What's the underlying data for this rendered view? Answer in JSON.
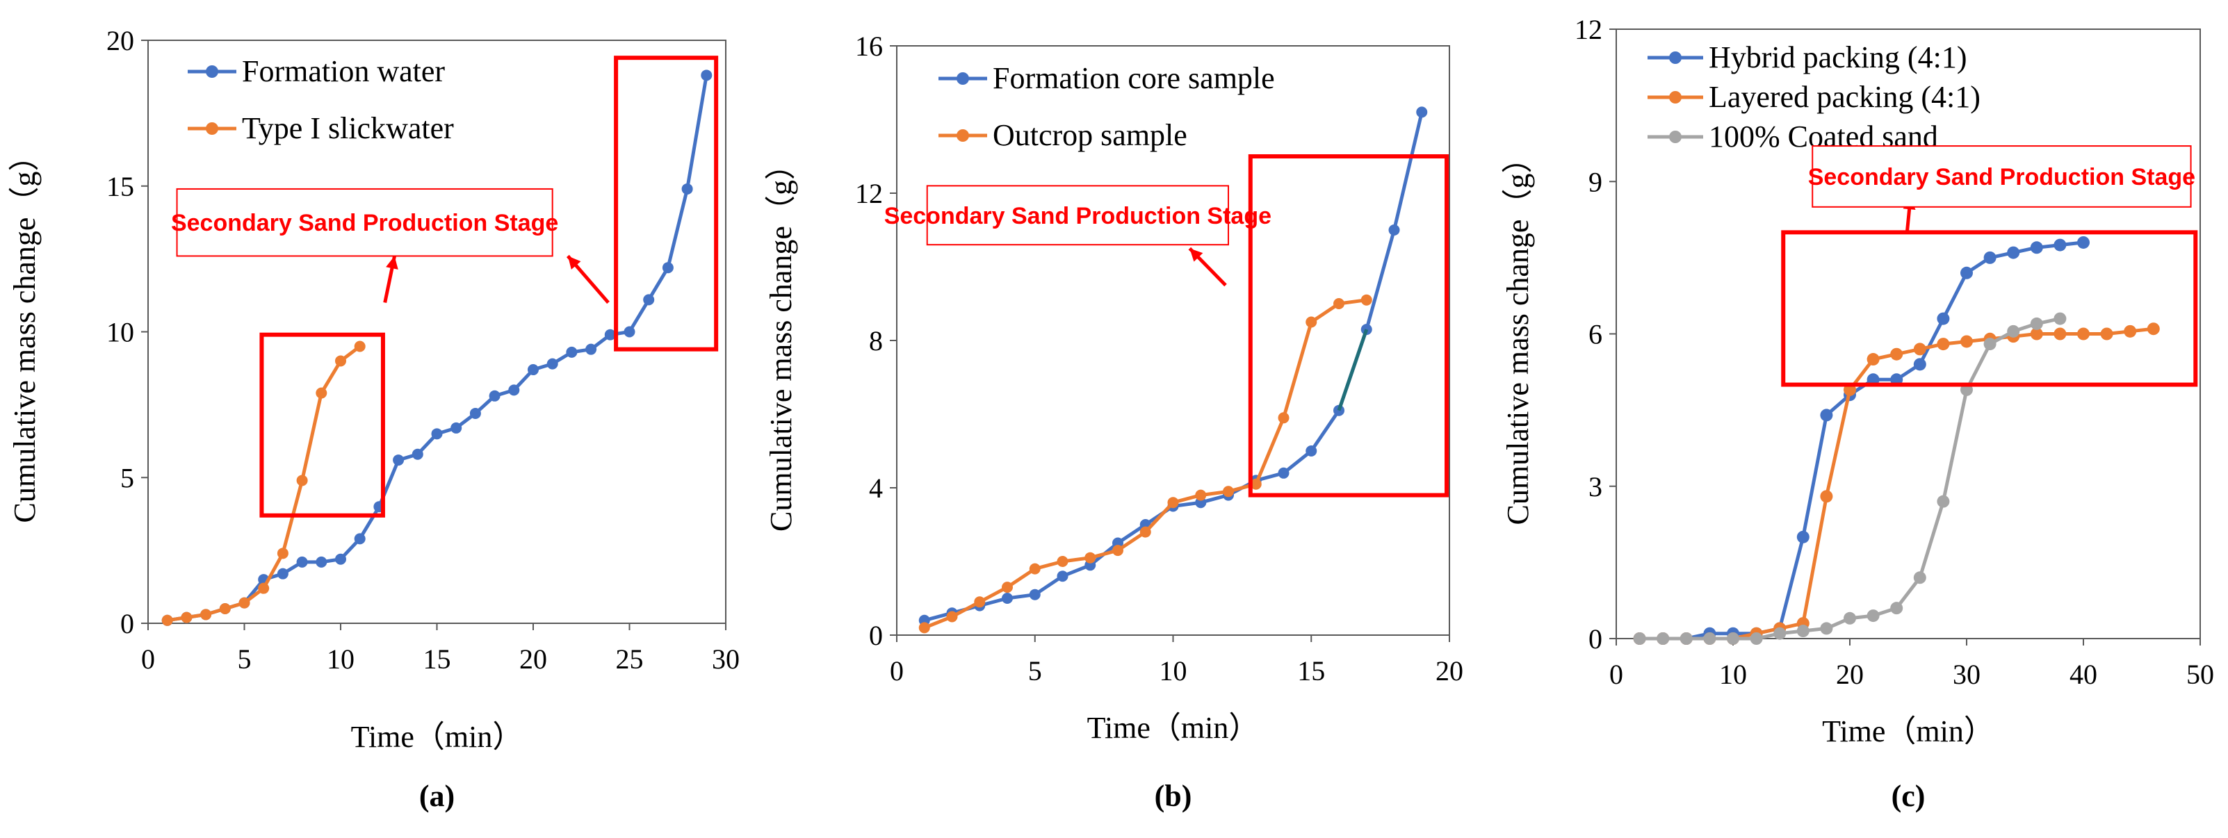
{
  "colors": {
    "blue": "#4472c4",
    "orange": "#ed7d31",
    "gray": "#a5a5a5",
    "red": "#ff0000",
    "teal": "#1f6e78",
    "axis": "#595959"
  },
  "annotation_text": "Secondary Sand Production Stage",
  "chart_data": [
    {
      "id": "a",
      "panel_label": "(a)",
      "type": "line",
      "xlabel": "Time（min）",
      "ylabel": "Cumulative mass change（g）",
      "xlim": [
        0,
        30
      ],
      "ylim": [
        0,
        20
      ],
      "xticks": [
        0,
        5,
        10,
        15,
        20,
        25,
        30
      ],
      "yticks": [
        0,
        5,
        10,
        15,
        20
      ],
      "legend_position": "top-left",
      "series": [
        {
          "name": "Formation water",
          "color": "#4472c4",
          "points": [
            [
              1,
              0.1
            ],
            [
              2,
              0.2
            ],
            [
              3,
              0.3
            ],
            [
              4,
              0.5
            ],
            [
              5,
              0.7
            ],
            [
              6,
              1.5
            ],
            [
              7,
              1.7
            ],
            [
              8,
              2.1
            ],
            [
              9,
              2.1
            ],
            [
              10,
              2.2
            ],
            [
              11,
              2.9
            ],
            [
              12,
              4.0
            ],
            [
              13,
              5.6
            ],
            [
              14,
              5.8
            ],
            [
              15,
              6.5
            ],
            [
              16,
              6.7
            ],
            [
              17,
              7.2
            ],
            [
              18,
              7.8
            ],
            [
              19,
              8.0
            ],
            [
              20,
              8.7
            ],
            [
              21,
              8.9
            ],
            [
              22,
              9.3
            ],
            [
              23,
              9.4
            ],
            [
              24,
              9.9
            ],
            [
              25,
              10.0
            ],
            [
              26,
              11.1
            ],
            [
              27,
              12.2
            ],
            [
              28,
              14.9
            ],
            [
              29,
              18.8
            ]
          ]
        },
        {
          "name": "Type I slickwater",
          "color": "#ed7d31",
          "points": [
            [
              1,
              0.1
            ],
            [
              2,
              0.2
            ],
            [
              3,
              0.3
            ],
            [
              4,
              0.5
            ],
            [
              5,
              0.7
            ],
            [
              6,
              1.2
            ],
            [
              7,
              2.4
            ],
            [
              8,
              4.9
            ],
            [
              9,
              7.9
            ],
            [
              10,
              9.0
            ],
            [
              11,
              9.5
            ]
          ]
        }
      ],
      "boxes": [
        {
          "x0": 5.9,
          "x1": 12.2,
          "y0": 3.7,
          "y1": 9.9
        },
        {
          "x0": 24.3,
          "x1": 29.5,
          "y0": 9.4,
          "y1": 19.4
        }
      ],
      "arrows": [
        {
          "from": [
            12.3,
            11.0
          ],
          "to": [
            12.8,
            12.6
          ]
        },
        {
          "from": [
            23.9,
            11.0
          ],
          "to": [
            21.8,
            12.6
          ]
        }
      ],
      "annotations": [
        {
          "text": "Secondary Sand Production Stage",
          "x": 1.5,
          "y": 14.9,
          "x1": 21.0,
          "y1": 12.6
        }
      ]
    },
    {
      "id": "b",
      "panel_label": "(b)",
      "type": "line",
      "xlabel": "Time（min）",
      "ylabel": "Cumulative mass change（g）",
      "xlim": [
        0,
        20
      ],
      "ylim": [
        0,
        16
      ],
      "xticks": [
        0,
        5,
        10,
        15,
        20
      ],
      "yticks": [
        0,
        4,
        8,
        12,
        16
      ],
      "legend_position": "top-left",
      "series": [
        {
          "name": "Formation core sample",
          "color": "#4472c4",
          "points": [
            [
              1,
              0.4
            ],
            [
              2,
              0.6
            ],
            [
              3,
              0.8
            ],
            [
              4,
              1.0
            ],
            [
              5,
              1.1
            ],
            [
              6,
              1.6
            ],
            [
              7,
              1.9
            ],
            [
              8,
              2.5
            ],
            [
              9,
              3.0
            ],
            [
              10,
              3.5
            ],
            [
              11,
              3.6
            ],
            [
              12,
              3.8
            ],
            [
              13,
              4.2
            ],
            [
              14,
              4.4
            ],
            [
              15,
              5.0
            ],
            [
              16,
              6.1
            ],
            [
              17,
              8.3
            ],
            [
              18,
              11.0
            ],
            [
              19,
              14.2
            ]
          ]
        },
        {
          "name": "Outcrop sample",
          "color": "#ed7d31",
          "points": [
            [
              1,
              0.2
            ],
            [
              2,
              0.5
            ],
            [
              3,
              0.9
            ],
            [
              4,
              1.3
            ],
            [
              5,
              1.8
            ],
            [
              6,
              2.0
            ],
            [
              7,
              2.1
            ],
            [
              8,
              2.3
            ],
            [
              9,
              2.8
            ],
            [
              10,
              3.6
            ],
            [
              11,
              3.8
            ],
            [
              12,
              3.9
            ],
            [
              13,
              4.1
            ],
            [
              14,
              5.9
            ],
            [
              15,
              8.5
            ],
            [
              16,
              9.0
            ],
            [
              17,
              9.1
            ]
          ]
        }
      ],
      "boxes": [
        {
          "x0": 12.8,
          "x1": 19.9,
          "y0": 3.8,
          "y1": 13.0
        }
      ],
      "arrows": [
        {
          "from": [
            11.9,
            9.5
          ],
          "to": [
            10.6,
            10.5
          ]
        }
      ],
      "annotations": [
        {
          "text": "Secondary Sand Production Stage",
          "x": 1.1,
          "y": 12.2,
          "x1": 12.0,
          "y1": 10.6
        }
      ]
    },
    {
      "id": "c",
      "panel_label": "(c)",
      "type": "line",
      "xlabel": "Time（min）",
      "ylabel": "Cumulative mass change（g）",
      "xlim": [
        0,
        50
      ],
      "ylim": [
        0,
        12
      ],
      "xticks": [
        0,
        10,
        20,
        30,
        40,
        50
      ],
      "yticks": [
        0,
        3,
        6,
        9,
        12
      ],
      "legend_position": "top-left",
      "series": [
        {
          "name": "Hybrid packing (4:1)",
          "color": "#4472c4",
          "points": [
            [
              2,
              0
            ],
            [
              4,
              0
            ],
            [
              6,
              0
            ],
            [
              8,
              0.1
            ],
            [
              10,
              0.1
            ],
            [
              12,
              0.1
            ],
            [
              14,
              0.2
            ],
            [
              16,
              2.0
            ],
            [
              18,
              4.4
            ],
            [
              20,
              4.8
            ],
            [
              22,
              5.1
            ],
            [
              24,
              5.1
            ],
            [
              26,
              5.4
            ],
            [
              28,
              6.3
            ],
            [
              30,
              7.2
            ],
            [
              32,
              7.5
            ],
            [
              34,
              7.6
            ],
            [
              36,
              7.7
            ],
            [
              38,
              7.75
            ],
            [
              40,
              7.8
            ]
          ]
        },
        {
          "name": "Layered packing (4:1)",
          "color": "#ed7d31",
          "points": [
            [
              2,
              0
            ],
            [
              4,
              0
            ],
            [
              6,
              0
            ],
            [
              8,
              0
            ],
            [
              10,
              0
            ],
            [
              12,
              0.1
            ],
            [
              14,
              0.2
            ],
            [
              16,
              0.3
            ],
            [
              18,
              2.8
            ],
            [
              20,
              4.9
            ],
            [
              22,
              5.5
            ],
            [
              24,
              5.6
            ],
            [
              26,
              5.7
            ],
            [
              28,
              5.8
            ],
            [
              30,
              5.85
            ],
            [
              32,
              5.9
            ],
            [
              34,
              5.95
            ],
            [
              36,
              6.0
            ],
            [
              38,
              6.0
            ],
            [
              40,
              6.0
            ],
            [
              42,
              6.0
            ],
            [
              44,
              6.05
            ],
            [
              46,
              6.1
            ]
          ]
        },
        {
          "name": "100% Coated sand",
          "color": "#a5a5a5",
          "points": [
            [
              2,
              0
            ],
            [
              4,
              0
            ],
            [
              6,
              0
            ],
            [
              8,
              0
            ],
            [
              10,
              0
            ],
            [
              12,
              0
            ],
            [
              14,
              0.1
            ],
            [
              16,
              0.15
            ],
            [
              18,
              0.2
            ],
            [
              20,
              0.4
            ],
            [
              22,
              0.45
            ],
            [
              24,
              0.6
            ],
            [
              26,
              1.2
            ],
            [
              28,
              2.7
            ],
            [
              30,
              4.9
            ],
            [
              32,
              5.8
            ],
            [
              34,
              6.05
            ],
            [
              36,
              6.2
            ],
            [
              38,
              6.3
            ]
          ]
        }
      ],
      "boxes": [
        {
          "x0": 14.3,
          "x1": 49.6,
          "y0": 5.0,
          "y1": 8.0
        }
      ],
      "arrows": [
        {
          "from": [
            24.9,
            8.0
          ],
          "to": [
            25.2,
            8.7
          ]
        }
      ],
      "annotations": [
        {
          "text": "Secondary Sand Production Stage",
          "x": 16.8,
          "y": 9.7,
          "x1": 49.2,
          "y1": 8.5
        }
      ]
    }
  ]
}
